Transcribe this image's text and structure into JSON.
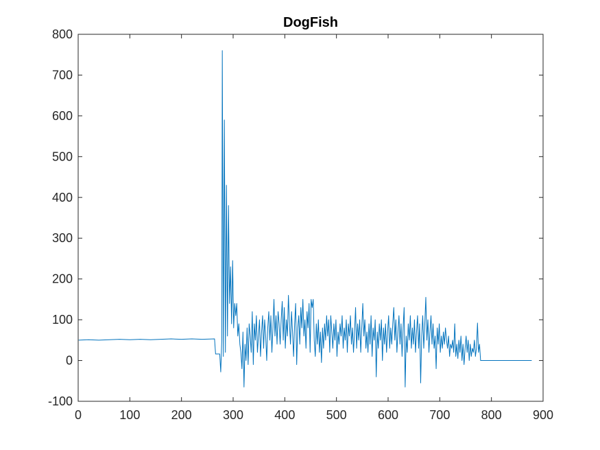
{
  "chart_data": {
    "type": "line",
    "title": "DogFish",
    "xlabel": "",
    "ylabel": "",
    "xlim": [
      0,
      900
    ],
    "ylim": [
      -100,
      800
    ],
    "x_ticks": [
      0,
      100,
      200,
      300,
      400,
      500,
      600,
      700,
      800,
      900
    ],
    "y_ticks": [
      -100,
      0,
      100,
      200,
      300,
      400,
      500,
      600,
      700,
      800
    ],
    "x_tick_labels": [
      "0",
      "100",
      "200",
      "300",
      "400",
      "500",
      "600",
      "700",
      "800",
      "900"
    ],
    "y_tick_labels": [
      "-100",
      "0",
      "100",
      "200",
      "300",
      "400",
      "500",
      "600",
      "700",
      "800"
    ],
    "grid": false,
    "box": true,
    "series": [
      {
        "color": "#0072BD",
        "points": [
          [
            1,
            50
          ],
          [
            20,
            51
          ],
          [
            40,
            50
          ],
          [
            60,
            51
          ],
          [
            80,
            52
          ],
          [
            100,
            51
          ],
          [
            120,
            52
          ],
          [
            140,
            51
          ],
          [
            160,
            52
          ],
          [
            180,
            53
          ],
          [
            200,
            52
          ],
          [
            220,
            53
          ],
          [
            240,
            52
          ],
          [
            264,
            53
          ],
          [
            266,
            16
          ],
          [
            274,
            16
          ],
          [
            276,
            -28
          ],
          [
            278,
            50
          ],
          [
            279,
            760
          ],
          [
            281,
            10
          ],
          [
            283,
            590
          ],
          [
            285,
            20
          ],
          [
            287,
            430
          ],
          [
            289,
            60
          ],
          [
            291,
            380
          ],
          [
            293,
            140
          ],
          [
            295,
            230
          ],
          [
            297,
            90
          ],
          [
            299,
            245
          ],
          [
            301,
            80
          ],
          [
            303,
            140
          ],
          [
            305,
            110
          ],
          [
            307,
            140
          ],
          [
            309,
            60
          ],
          [
            311,
            90
          ],
          [
            313,
            40
          ],
          [
            315,
            20
          ],
          [
            317,
            -20
          ],
          [
            319,
            70
          ],
          [
            321,
            -65
          ],
          [
            323,
            40
          ],
          [
            325,
            0
          ],
          [
            327,
            80
          ],
          [
            329,
            -10
          ],
          [
            331,
            90
          ],
          [
            333,
            60
          ],
          [
            335,
            20
          ],
          [
            337,
            120
          ],
          [
            339,
            -10
          ],
          [
            341,
            90
          ],
          [
            343,
            50
          ],
          [
            345,
            110
          ],
          [
            347,
            20
          ],
          [
            349,
            60
          ],
          [
            351,
            100
          ],
          [
            353,
            10
          ],
          [
            355,
            70
          ],
          [
            357,
            110
          ],
          [
            359,
            30
          ],
          [
            361,
            100
          ],
          [
            363,
            60
          ],
          [
            365,
            0
          ],
          [
            367,
            80
          ],
          [
            369,
            120
          ],
          [
            371,
            50
          ],
          [
            373,
            110
          ],
          [
            375,
            20
          ],
          [
            377,
            80
          ],
          [
            379,
            150
          ],
          [
            381,
            60
          ],
          [
            383,
            110
          ],
          [
            385,
            40
          ],
          [
            387,
            120
          ],
          [
            389,
            90
          ],
          [
            391,
            40
          ],
          [
            393,
            100
          ],
          [
            395,
            145
          ],
          [
            397,
            50
          ],
          [
            399,
            130
          ],
          [
            401,
            30
          ],
          [
            403,
            100
          ],
          [
            405,
            60
          ],
          [
            407,
            160
          ],
          [
            409,
            90
          ],
          [
            411,
            40
          ],
          [
            413,
            120
          ],
          [
            415,
            70
          ],
          [
            417,
            10
          ],
          [
            419,
            90
          ],
          [
            421,
            140
          ],
          [
            423,
            -10
          ],
          [
            425,
            80
          ],
          [
            427,
            110
          ],
          [
            429,
            40
          ],
          [
            431,
            130
          ],
          [
            433,
            80
          ],
          [
            435,
            150
          ],
          [
            437,
            60
          ],
          [
            439,
            100
          ],
          [
            441,
            30
          ],
          [
            443,
            120
          ],
          [
            445,
            80
          ],
          [
            447,
            140
          ],
          [
            449,
            20
          ],
          [
            451,
            150
          ],
          [
            453,
            130
          ],
          [
            455,
            150
          ],
          [
            457,
            50
          ],
          [
            459,
            10
          ],
          [
            461,
            90
          ],
          [
            463,
            40
          ],
          [
            465,
            100
          ],
          [
            467,
            20
          ],
          [
            469,
            70
          ],
          [
            471,
            -5
          ],
          [
            473,
            80
          ],
          [
            475,
            30
          ],
          [
            477,
            90
          ],
          [
            479,
            50
          ],
          [
            481,
            110
          ],
          [
            483,
            60
          ],
          [
            485,
            100
          ],
          [
            487,
            20
          ],
          [
            489,
            110
          ],
          [
            491,
            70
          ],
          [
            493,
            30
          ],
          [
            495,
            90
          ],
          [
            497,
            50
          ],
          [
            499,
            100
          ],
          [
            501,
            10
          ],
          [
            503,
            70
          ],
          [
            505,
            40
          ],
          [
            507,
            90
          ],
          [
            509,
            60
          ],
          [
            511,
            110
          ],
          [
            513,
            30
          ],
          [
            515,
            80
          ],
          [
            517,
            50
          ],
          [
            519,
            100
          ],
          [
            521,
            20
          ],
          [
            523,
            90
          ],
          [
            525,
            60
          ],
          [
            527,
            110
          ],
          [
            529,
            40
          ],
          [
            531,
            80
          ],
          [
            533,
            20
          ],
          [
            535,
            70
          ],
          [
            537,
            130
          ],
          [
            539,
            30
          ],
          [
            541,
            90
          ],
          [
            543,
            50
          ],
          [
            545,
            100
          ],
          [
            547,
            20
          ],
          [
            549,
            80
          ],
          [
            551,
            140
          ],
          [
            553,
            60
          ],
          [
            555,
            100
          ],
          [
            557,
            30
          ],
          [
            559,
            70
          ],
          [
            561,
            20
          ],
          [
            563,
            90
          ],
          [
            565,
            40
          ],
          [
            567,
            110
          ],
          [
            569,
            10
          ],
          [
            571,
            80
          ],
          [
            573,
            50
          ],
          [
            575,
            100
          ],
          [
            577,
            -40
          ],
          [
            579,
            70
          ],
          [
            581,
            30
          ],
          [
            583,
            90
          ],
          [
            585,
            50
          ],
          [
            587,
            100
          ],
          [
            589,
            0
          ],
          [
            591,
            80
          ],
          [
            593,
            40
          ],
          [
            595,
            90
          ],
          [
            597,
            20
          ],
          [
            599,
            70
          ],
          [
            601,
            110
          ],
          [
            603,
            30
          ],
          [
            605,
            80
          ],
          [
            607,
            40
          ],
          [
            609,
            90
          ],
          [
            611,
            130
          ],
          [
            613,
            50
          ],
          [
            615,
            100
          ],
          [
            617,
            20
          ],
          [
            619,
            70
          ],
          [
            621,
            110
          ],
          [
            623,
            40
          ],
          [
            625,
            90
          ],
          [
            627,
            10
          ],
          [
            629,
            80
          ],
          [
            631,
            130
          ],
          [
            633,
            -65
          ],
          [
            635,
            60
          ],
          [
            637,
            20
          ],
          [
            639,
            90
          ],
          [
            641,
            50
          ],
          [
            643,
            110
          ],
          [
            645,
            30
          ],
          [
            647,
            80
          ],
          [
            649,
            40
          ],
          [
            651,
            100
          ],
          [
            653,
            20
          ],
          [
            655,
            70
          ],
          [
            657,
            110
          ],
          [
            659,
            30
          ],
          [
            661,
            90
          ],
          [
            663,
            -55
          ],
          [
            665,
            60
          ],
          [
            667,
            110
          ],
          [
            669,
            30
          ],
          [
            671,
            90
          ],
          [
            673,
            155
          ],
          [
            675,
            50
          ],
          [
            677,
            100
          ],
          [
            679,
            20
          ],
          [
            681,
            70
          ],
          [
            683,
            110
          ],
          [
            685,
            40
          ],
          [
            687,
            90
          ],
          [
            689,
            30
          ],
          [
            691,
            60
          ],
          [
            693,
            -20
          ],
          [
            695,
            80
          ],
          [
            697,
            40
          ],
          [
            699,
            90
          ],
          [
            701,
            20
          ],
          [
            703,
            60
          ],
          [
            705,
            30
          ],
          [
            707,
            70
          ],
          [
            709,
            40
          ],
          [
            711,
            80
          ],
          [
            713,
            50
          ],
          [
            715,
            30
          ],
          [
            717,
            60
          ],
          [
            719,
            10
          ],
          [
            721,
            40
          ],
          [
            723,
            30
          ],
          [
            725,
            50
          ],
          [
            727,
            20
          ],
          [
            729,
            90
          ],
          [
            731,
            10
          ],
          [
            733,
            40
          ],
          [
            735,
            5
          ],
          [
            737,
            50
          ],
          [
            739,
            20
          ],
          [
            741,
            60
          ],
          [
            743,
            0
          ],
          [
            745,
            40
          ],
          [
            747,
            -10
          ],
          [
            749,
            30
          ],
          [
            751,
            60
          ],
          [
            753,
            20
          ],
          [
            755,
            50
          ],
          [
            757,
            0
          ],
          [
            759,
            40
          ],
          [
            761,
            10
          ],
          [
            763,
            30
          ],
          [
            765,
            20
          ],
          [
            767,
            50
          ],
          [
            769,
            10
          ],
          [
            771,
            30
          ],
          [
            773,
            92
          ],
          [
            775,
            20
          ],
          [
            777,
            40
          ],
          [
            779,
            0
          ],
          [
            800,
            0
          ],
          [
            840,
            0
          ],
          [
            878,
            0
          ]
        ]
      }
    ]
  }
}
